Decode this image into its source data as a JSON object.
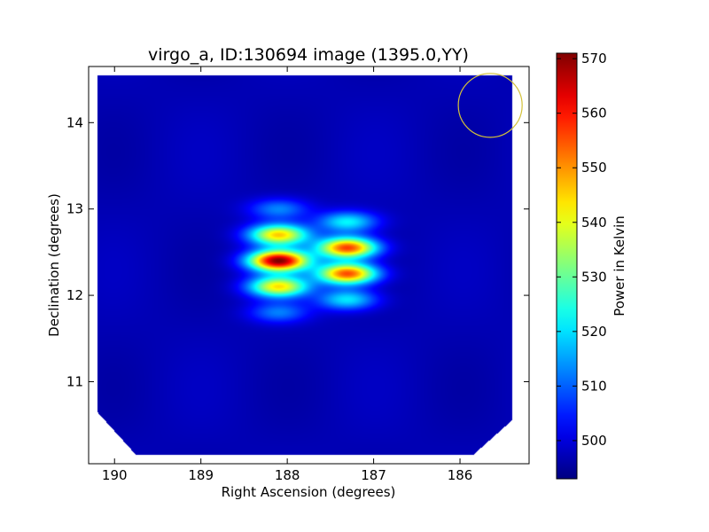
{
  "chart_data": {
    "type": "heatmap",
    "title": "virgo_a, ID:130694 image (1395.0,YY)",
    "xlabel": "Right Ascension (degrees)",
    "ylabel": "Declination (degrees)",
    "xlim": [
      190.3,
      185.2
    ],
    "ylim": [
      10.05,
      14.65
    ],
    "x_ticks": [
      190,
      189,
      188,
      187,
      186
    ],
    "y_ticks": [
      11,
      12,
      13,
      14
    ],
    "colorbar": {
      "label": "Power in Kelvin",
      "range": [
        493,
        571
      ],
      "ticks": [
        500,
        510,
        520,
        530,
        540,
        550,
        560,
        570
      ],
      "colormap": "jet"
    },
    "background_level": 497,
    "map_extent": {
      "ra": [
        190.2,
        185.4
      ],
      "dec": [
        10.15,
        14.55
      ]
    },
    "peaks": [
      {
        "ra": 188.1,
        "dec": 12.4,
        "value": 570
      },
      {
        "ra": 188.1,
        "dec": 12.7,
        "value": 545
      },
      {
        "ra": 188.1,
        "dec": 12.1,
        "value": 543
      },
      {
        "ra": 188.1,
        "dec": 13.0,
        "value": 513
      },
      {
        "ra": 188.1,
        "dec": 11.8,
        "value": 512
      },
      {
        "ra": 187.3,
        "dec": 12.55,
        "value": 557
      },
      {
        "ra": 187.3,
        "dec": 12.25,
        "value": 556
      },
      {
        "ra": 187.3,
        "dec": 12.85,
        "value": 522
      },
      {
        "ra": 187.3,
        "dec": 11.95,
        "value": 521
      }
    ],
    "beam_circle": {
      "ra": 185.65,
      "dec": 14.2,
      "radius_deg": 0.37,
      "color": "#d4c23a"
    }
  }
}
